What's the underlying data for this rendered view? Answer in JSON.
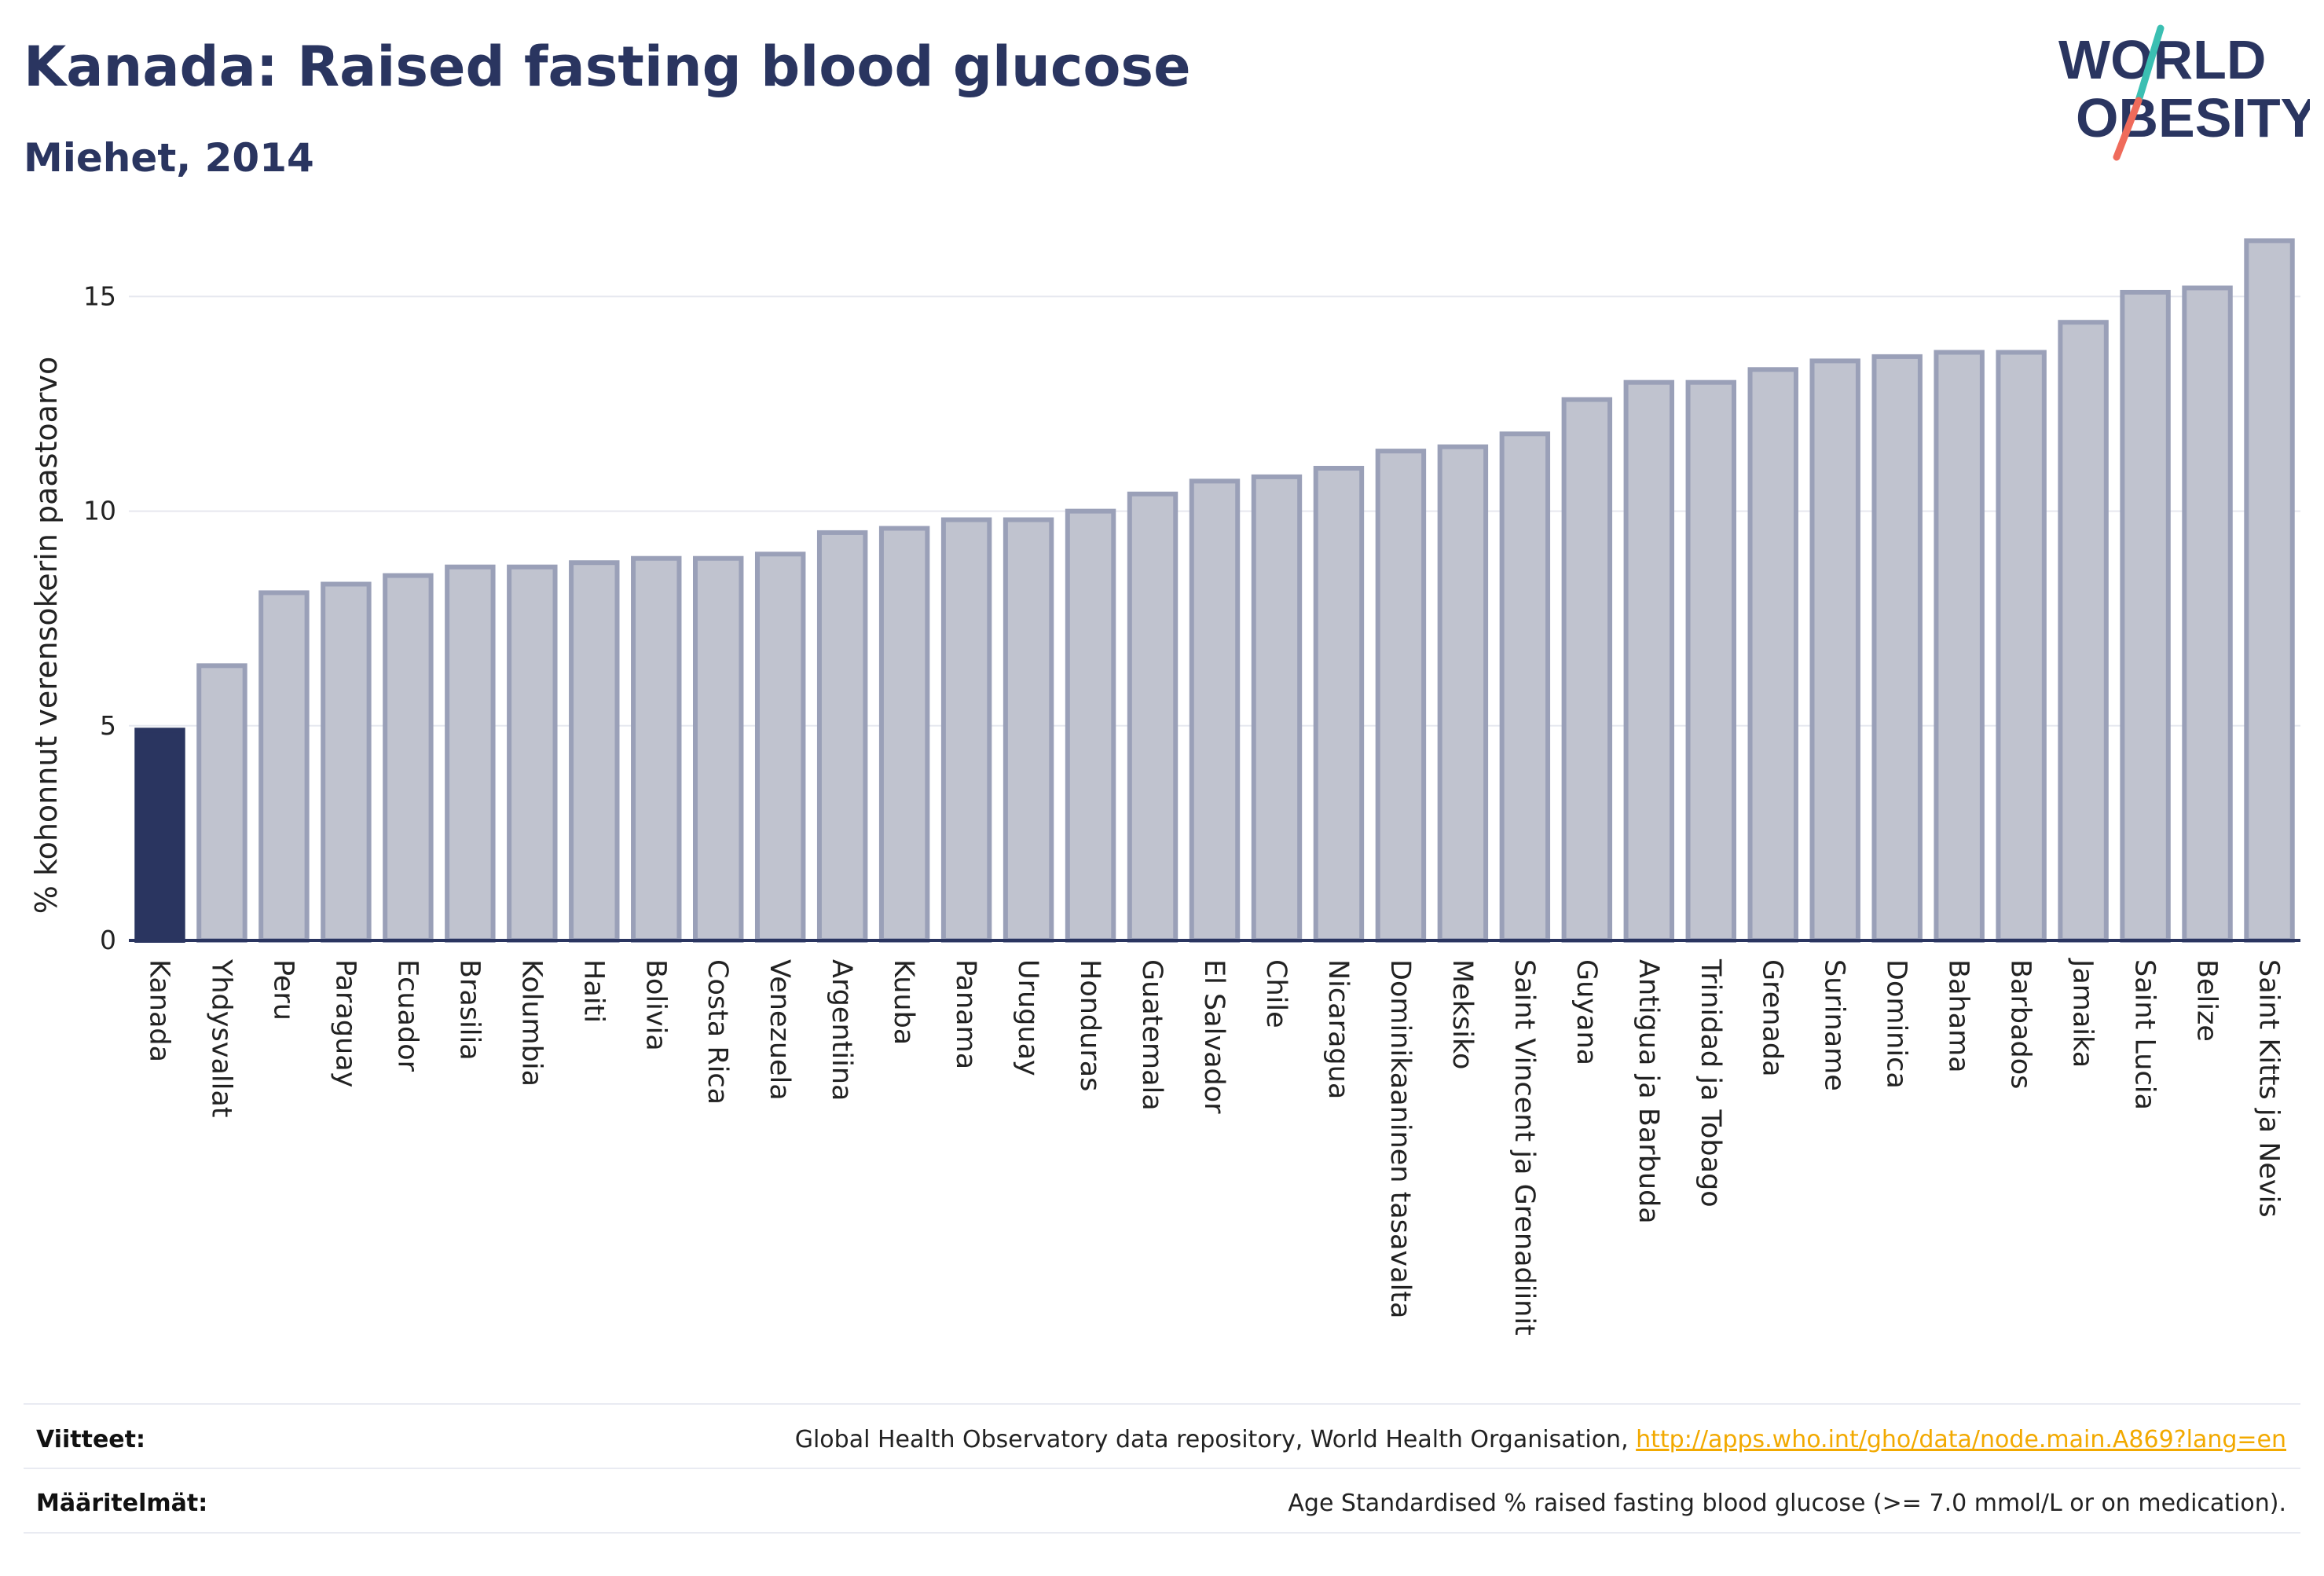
{
  "header": {
    "title": "Kanada: Raised fasting blood glucose",
    "subtitle": "Miehet, 2014"
  },
  "logo": {
    "line1": "WORLD",
    "line2": "OBESITY",
    "text_color": "#2a3560",
    "slash_colors": [
      "#3bbfb2",
      "#ef6b5b"
    ]
  },
  "colors": {
    "highlight_bar": "#2a3560",
    "bar_fill": "#c0c3cf",
    "bar_stroke": "#9aa0b8",
    "axis": "#2a3560",
    "grid": "#e6e8ef"
  },
  "chart_data": {
    "type": "bar",
    "title": "Kanada: Raised fasting blood glucose",
    "subtitle": "Miehet, 2014",
    "ylabel": "% kohonnut verensokerin paastoarvo",
    "xlabel": "",
    "ylim": [
      0,
      16.6
    ],
    "yticks": [
      0,
      5,
      10,
      15
    ],
    "grid": true,
    "highlight": "Kanada",
    "categories": [
      "Kanada",
      "Yhdysvallat",
      "Peru",
      "Paraguay",
      "Ecuador",
      "Brasilia",
      "Kolumbia",
      "Haiti",
      "Bolivia",
      "Costa Rica",
      "Venezuela",
      "Argentiina",
      "Kuuba",
      "Panama",
      "Uruguay",
      "Honduras",
      "Guatemala",
      "El Salvador",
      "Chile",
      "Nicaragua",
      "Dominikaaninen tasavalta",
      "Meksiko",
      "Saint Vincent ja Grenadiinit",
      "Guyana",
      "Antigua ja Barbuda",
      "Trinidad ja Tobago",
      "Grenada",
      "Suriname",
      "Dominica",
      "Bahama",
      "Barbados",
      "Jamaika",
      "Saint Lucia",
      "Belize",
      "Saint Kitts ja Nevis"
    ],
    "values": [
      4.9,
      6.4,
      8.1,
      8.3,
      8.5,
      8.7,
      8.7,
      8.8,
      8.9,
      8.9,
      9.0,
      9.5,
      9.6,
      9.8,
      9.8,
      10.0,
      10.4,
      10.7,
      10.8,
      11.0,
      11.4,
      11.5,
      11.8,
      12.6,
      13.0,
      13.0,
      13.3,
      13.5,
      13.6,
      13.7,
      13.7,
      14.4,
      15.1,
      15.2,
      16.3
    ]
  },
  "footer": {
    "references_label": "Viitteet:",
    "references_text": "Global Health Observatory data repository, World Health Organisation, ",
    "references_link": "http://apps.who.int/gho/data/node.main.A869?lang=en",
    "definitions_label": "Määritelmät:",
    "definitions_text": "Age Standardised % raised fasting blood glucose (>= 7.0 mmol/L or on medication)."
  }
}
